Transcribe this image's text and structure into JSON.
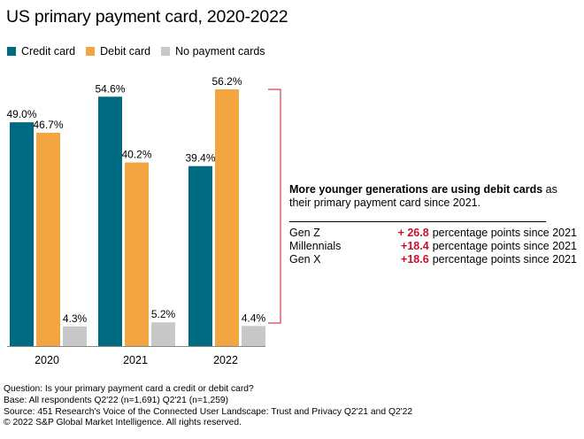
{
  "title": "US primary payment card, 2020-2022",
  "legend": [
    {
      "label": "Credit card",
      "color": "#006a80"
    },
    {
      "label": "Debit card",
      "color": "#f2a541"
    },
    {
      "label": "No payment cards",
      "color": "#c8c8c8"
    }
  ],
  "chart_data": {
    "type": "bar",
    "title": "US primary payment card, 2020-2022",
    "categories": [
      "2020",
      "2021",
      "2022"
    ],
    "series": [
      {
        "name": "Credit card",
        "values": [
          49.0,
          54.6,
          39.4
        ],
        "labels": [
          "49.0%",
          "54.6%",
          "39.4%"
        ],
        "color": "#006a80"
      },
      {
        "name": "Debit card",
        "values": [
          46.7,
          40.2,
          56.2
        ],
        "labels": [
          "46.7%",
          "40.2%",
          "56.2%"
        ],
        "color": "#f2a541"
      },
      {
        "name": "No payment cards",
        "values": [
          4.3,
          5.2,
          4.4
        ],
        "labels": [
          "4.3%",
          "5.2%",
          "4.4%"
        ],
        "color": "#c8c8c8"
      }
    ],
    "ylim": [
      0,
      60
    ],
    "xlabel": "",
    "ylabel": "",
    "bracket_color": "#c8102e"
  },
  "callout": {
    "bold": "More younger generations are using debit cards",
    "rest": " as their primary payment card since 2021.",
    "rows": [
      {
        "gen": "Gen Z",
        "value": "+ 26.8",
        "text": " percentage points since 2021"
      },
      {
        "gen": "Millennials",
        "value": "+18.4",
        "text": " percentage points since 2021"
      },
      {
        "gen": "Gen X",
        "value": "+18.6",
        "text": " percentage points since 2021"
      }
    ]
  },
  "notes": {
    "question": "Question: Is your primary payment card a credit or debit card?",
    "base": "Base: All respondents Q2'22 (n=1,691) Q2'21 (n=1,259)",
    "source": "Source: 451 Research's Voice of the Connected User Landscape: Trust and Privacy Q2'21 and Q2'22",
    "copyright": "© 2022 S&P Global Market Intelligence. All rights reserved."
  }
}
